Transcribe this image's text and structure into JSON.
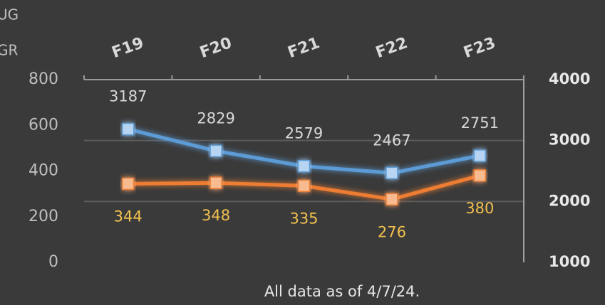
{
  "chart_data": {
    "type": "line",
    "annotations": [
      "UG",
      "GR"
    ],
    "footnote": "All data as of 4/7/24.",
    "categories": [
      "F19",
      "F20",
      "F21",
      "F22",
      "F23"
    ],
    "series": [
      {
        "color": "#5b9bd5",
        "marker_color": "#b7d5f2",
        "label_color": "#d8d8d8",
        "axis": "y2",
        "values": [
          3187,
          2829,
          2579,
          2467,
          2751
        ]
      },
      {
        "color": "#ed7d31",
        "marker_color": "#f8bb90",
        "label_color": "#f2c14e",
        "values": [
          344,
          348,
          335,
          276,
          380
        ]
      }
    ],
    "ylim": [
      0,
      800
    ],
    "yticks": [
      0,
      200,
      400,
      600,
      800
    ],
    "y2lim": [
      1000,
      4000
    ],
    "y2ticks": [
      1000,
      2000,
      3000,
      4000
    ],
    "grid": true
  }
}
